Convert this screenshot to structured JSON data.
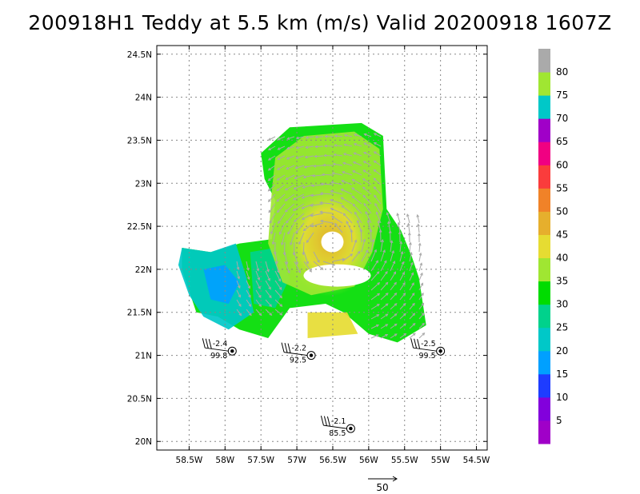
{
  "chart_data": {
    "type": "heatmap",
    "title": "200918H1 Teddy at 5.5 km (m/s) Valid 20200918 1607Z",
    "xlabel": "",
    "ylabel": "",
    "xlim": [
      -58.95,
      -54.35
    ],
    "ylim": [
      19.9,
      24.6
    ],
    "grid": true,
    "x_ticks": [
      {
        "value": -58.5,
        "label": "58.5W"
      },
      {
        "value": -58.0,
        "label": "58W"
      },
      {
        "value": -57.5,
        "label": "57.5W"
      },
      {
        "value": -57.0,
        "label": "57W"
      },
      {
        "value": -56.5,
        "label": "56.5W"
      },
      {
        "value": -56.0,
        "label": "56W"
      },
      {
        "value": -55.5,
        "label": "55.5W"
      },
      {
        "value": -55.0,
        "label": "55W"
      },
      {
        "value": -54.5,
        "label": "54.5W"
      }
    ],
    "y_ticks": [
      {
        "value": 24.5,
        "label": "24.5N"
      },
      {
        "value": 24.0,
        "label": "24N"
      },
      {
        "value": 23.5,
        "label": "23.5N"
      },
      {
        "value": 23.0,
        "label": "23N"
      },
      {
        "value": 22.5,
        "label": "22.5N"
      },
      {
        "value": 22.0,
        "label": "22N"
      },
      {
        "value": 21.5,
        "label": "21.5N"
      },
      {
        "value": 21.0,
        "label": "21N"
      },
      {
        "value": 20.5,
        "label": "20.5N"
      },
      {
        "value": 20.0,
        "label": "20N"
      }
    ],
    "colorbar": {
      "labels": [
        "5",
        "10",
        "15",
        "20",
        "25",
        "30",
        "35",
        "40",
        "45",
        "50",
        "55",
        "60",
        "65",
        "70",
        "75",
        "80"
      ],
      "colors": [
        "#a000c8",
        "#8200dc",
        "#1e3cff",
        "#00a0ff",
        "#00c8c8",
        "#00d28c",
        "#00dc00",
        "#a0e632",
        "#e6dc32",
        "#e6af2d",
        "#f08228",
        "#fa3c3c",
        "#f00082",
        "#a000c8",
        "#00c8c8",
        "#a0e632",
        "#aaaaaa"
      ]
    },
    "vector_reference": {
      "label": "50"
    },
    "storm_center": {
      "lon": -56.55,
      "lat": 22.3
    },
    "dropsondes": [
      {
        "lon": -57.9,
        "lat": 21.05,
        "top_label": "-2.4",
        "bottom_label": "99.8"
      },
      {
        "lon": -56.8,
        "lat": 21.0,
        "top_label": "-2.2",
        "bottom_label": "92.5"
      },
      {
        "lon": -55.0,
        "lat": 21.05,
        "top_label": "-2.5",
        "bottom_label": "99.5"
      },
      {
        "lon": -56.25,
        "lat": 20.15,
        "top_label": "-2.1",
        "bottom_label": "85.5"
      }
    ]
  }
}
